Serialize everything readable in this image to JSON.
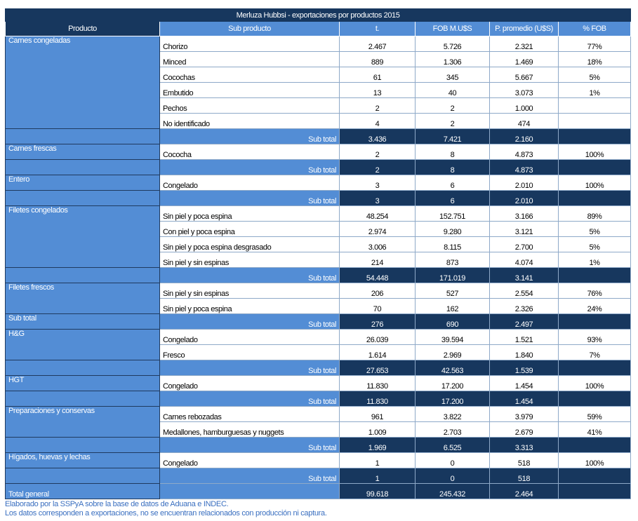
{
  "title": "Merluza Hubbsi - exportaciones por productos 2015",
  "headers": [
    "Producto",
    "Sub producto",
    "t.",
    "FOB M.U$S",
    "P. promedio (U$S)",
    "% FOB"
  ],
  "subtotal_label": "Sub total",
  "groups": [
    {
      "product": "Carnes congeladas",
      "items": [
        {
          "sub": "Chorizo",
          "t": "2.467",
          "fob": "5.726",
          "price": "2.321",
          "pct": "77%"
        },
        {
          "sub": "Minced",
          "t": "889",
          "fob": "1.306",
          "price": "1.469",
          "pct": "18%"
        },
        {
          "sub": "Cocochas",
          "t": "61",
          "fob": "345",
          "price": "5.667",
          "pct": "5%"
        },
        {
          "sub": "Embutido",
          "t": "13",
          "fob": "40",
          "price": "3.073",
          "pct": "1%"
        },
        {
          "sub": "Pechos",
          "t": "2",
          "fob": "2",
          "price": "1.000",
          "pct": ""
        },
        {
          "sub": "No identificado",
          "t": "4",
          "fob": "2",
          "price": "474",
          "pct": ""
        }
      ],
      "subtotal": {
        "product": "",
        "t": "3.436",
        "fob": "7.421",
        "price": "2.160"
      }
    },
    {
      "product": "Carnes frescas",
      "items": [
        {
          "sub": "Cocochа",
          "t": "2",
          "fob": "8",
          "price": "4.873",
          "pct": "100%"
        }
      ],
      "subtotal": {
        "product": "",
        "t": "2",
        "fob": "8",
        "price": "4.873"
      }
    },
    {
      "product": "Entero",
      "items": [
        {
          "sub": "Congelado",
          "t": "3",
          "fob": "6",
          "price": "2.010",
          "pct": "100%"
        }
      ],
      "subtotal": {
        "product": "",
        "t": "3",
        "fob": "6",
        "price": "2.010"
      }
    },
    {
      "product": "Filetes congelados",
      "items": [
        {
          "sub": "Sin piel y poca espina",
          "t": "48.254",
          "fob": "152.751",
          "price": "3.166",
          "pct": "89%"
        },
        {
          "sub": "Con piel y poca espina",
          "t": "2.974",
          "fob": "9.280",
          "price": "3.121",
          "pct": "5%"
        },
        {
          "sub": "Sin piel y poca espina desgrasado",
          "t": "3.006",
          "fob": "8.115",
          "price": "2.700",
          "pct": "5%"
        },
        {
          "sub": "Sin piel y sin espinas",
          "t": "214",
          "fob": "873",
          "price": "4.074",
          "pct": "1%"
        }
      ],
      "subtotal": {
        "product": "",
        "t": "54.448",
        "fob": "171.019",
        "price": "3.141"
      }
    },
    {
      "product": "Filetes frescos",
      "items": [
        {
          "sub": "Sin piel y sin espinas",
          "t": "206",
          "fob": "527",
          "price": "2.554",
          "pct": "76%"
        },
        {
          "sub": "Sin piel y poca espina",
          "t": "70",
          "fob": "162",
          "price": "2.326",
          "pct": "24%"
        }
      ],
      "subtotal": {
        "product": "Sub total",
        "t": "276",
        "fob": "690",
        "price": "2.497"
      }
    },
    {
      "product": "H&G",
      "items": [
        {
          "sub": "Congelado",
          "t": "26.039",
          "fob": "39.594",
          "price": "1.521",
          "pct": "93%"
        },
        {
          "sub": "Fresco",
          "t": "1.614",
          "fob": "2.969",
          "price": "1.840",
          "pct": "7%"
        }
      ],
      "subtotal": {
        "product": "",
        "t": "27.653",
        "fob": "42.563",
        "price": "1.539"
      }
    },
    {
      "product": "HGT",
      "items": [
        {
          "sub": "Congelado",
          "t": "11.830",
          "fob": "17.200",
          "price": "1.454",
          "pct": "100%"
        }
      ],
      "subtotal": {
        "product": "",
        "t": "11.830",
        "fob": "17.200",
        "price": "1.454"
      }
    },
    {
      "product": "Preparaciones y conservas",
      "items": [
        {
          "sub": "Carnes rebozadas",
          "t": "961",
          "fob": "3.822",
          "price": "3.979",
          "pct": "59%"
        },
        {
          "sub": "Medallones, hamburguesas y nuggets",
          "t": "1.009",
          "fob": "2.703",
          "price": "2.679",
          "pct": "41%"
        }
      ],
      "subtotal": {
        "product": "",
        "t": "1.969",
        "fob": "6.525",
        "price": "3.313"
      }
    },
    {
      "product": "Hígados, huevas y lechas",
      "items": [
        {
          "sub": "Congelado",
          "t": "1",
          "fob": "0",
          "price": "518",
          "pct": "100%"
        }
      ],
      "subtotal": {
        "product": "",
        "t": "1",
        "fob": "0",
        "price": "518"
      }
    }
  ],
  "total": {
    "label": "Total general",
    "t": "99.618",
    "fob": "245.432",
    "price": "2.464"
  },
  "notes": [
    "Elaborado por la SSPyA sobre la base de datos de Aduana e INDEC.",
    "Los datos corresponden a exportaciones, no se encuentran relacionados con producción ni captura."
  ]
}
